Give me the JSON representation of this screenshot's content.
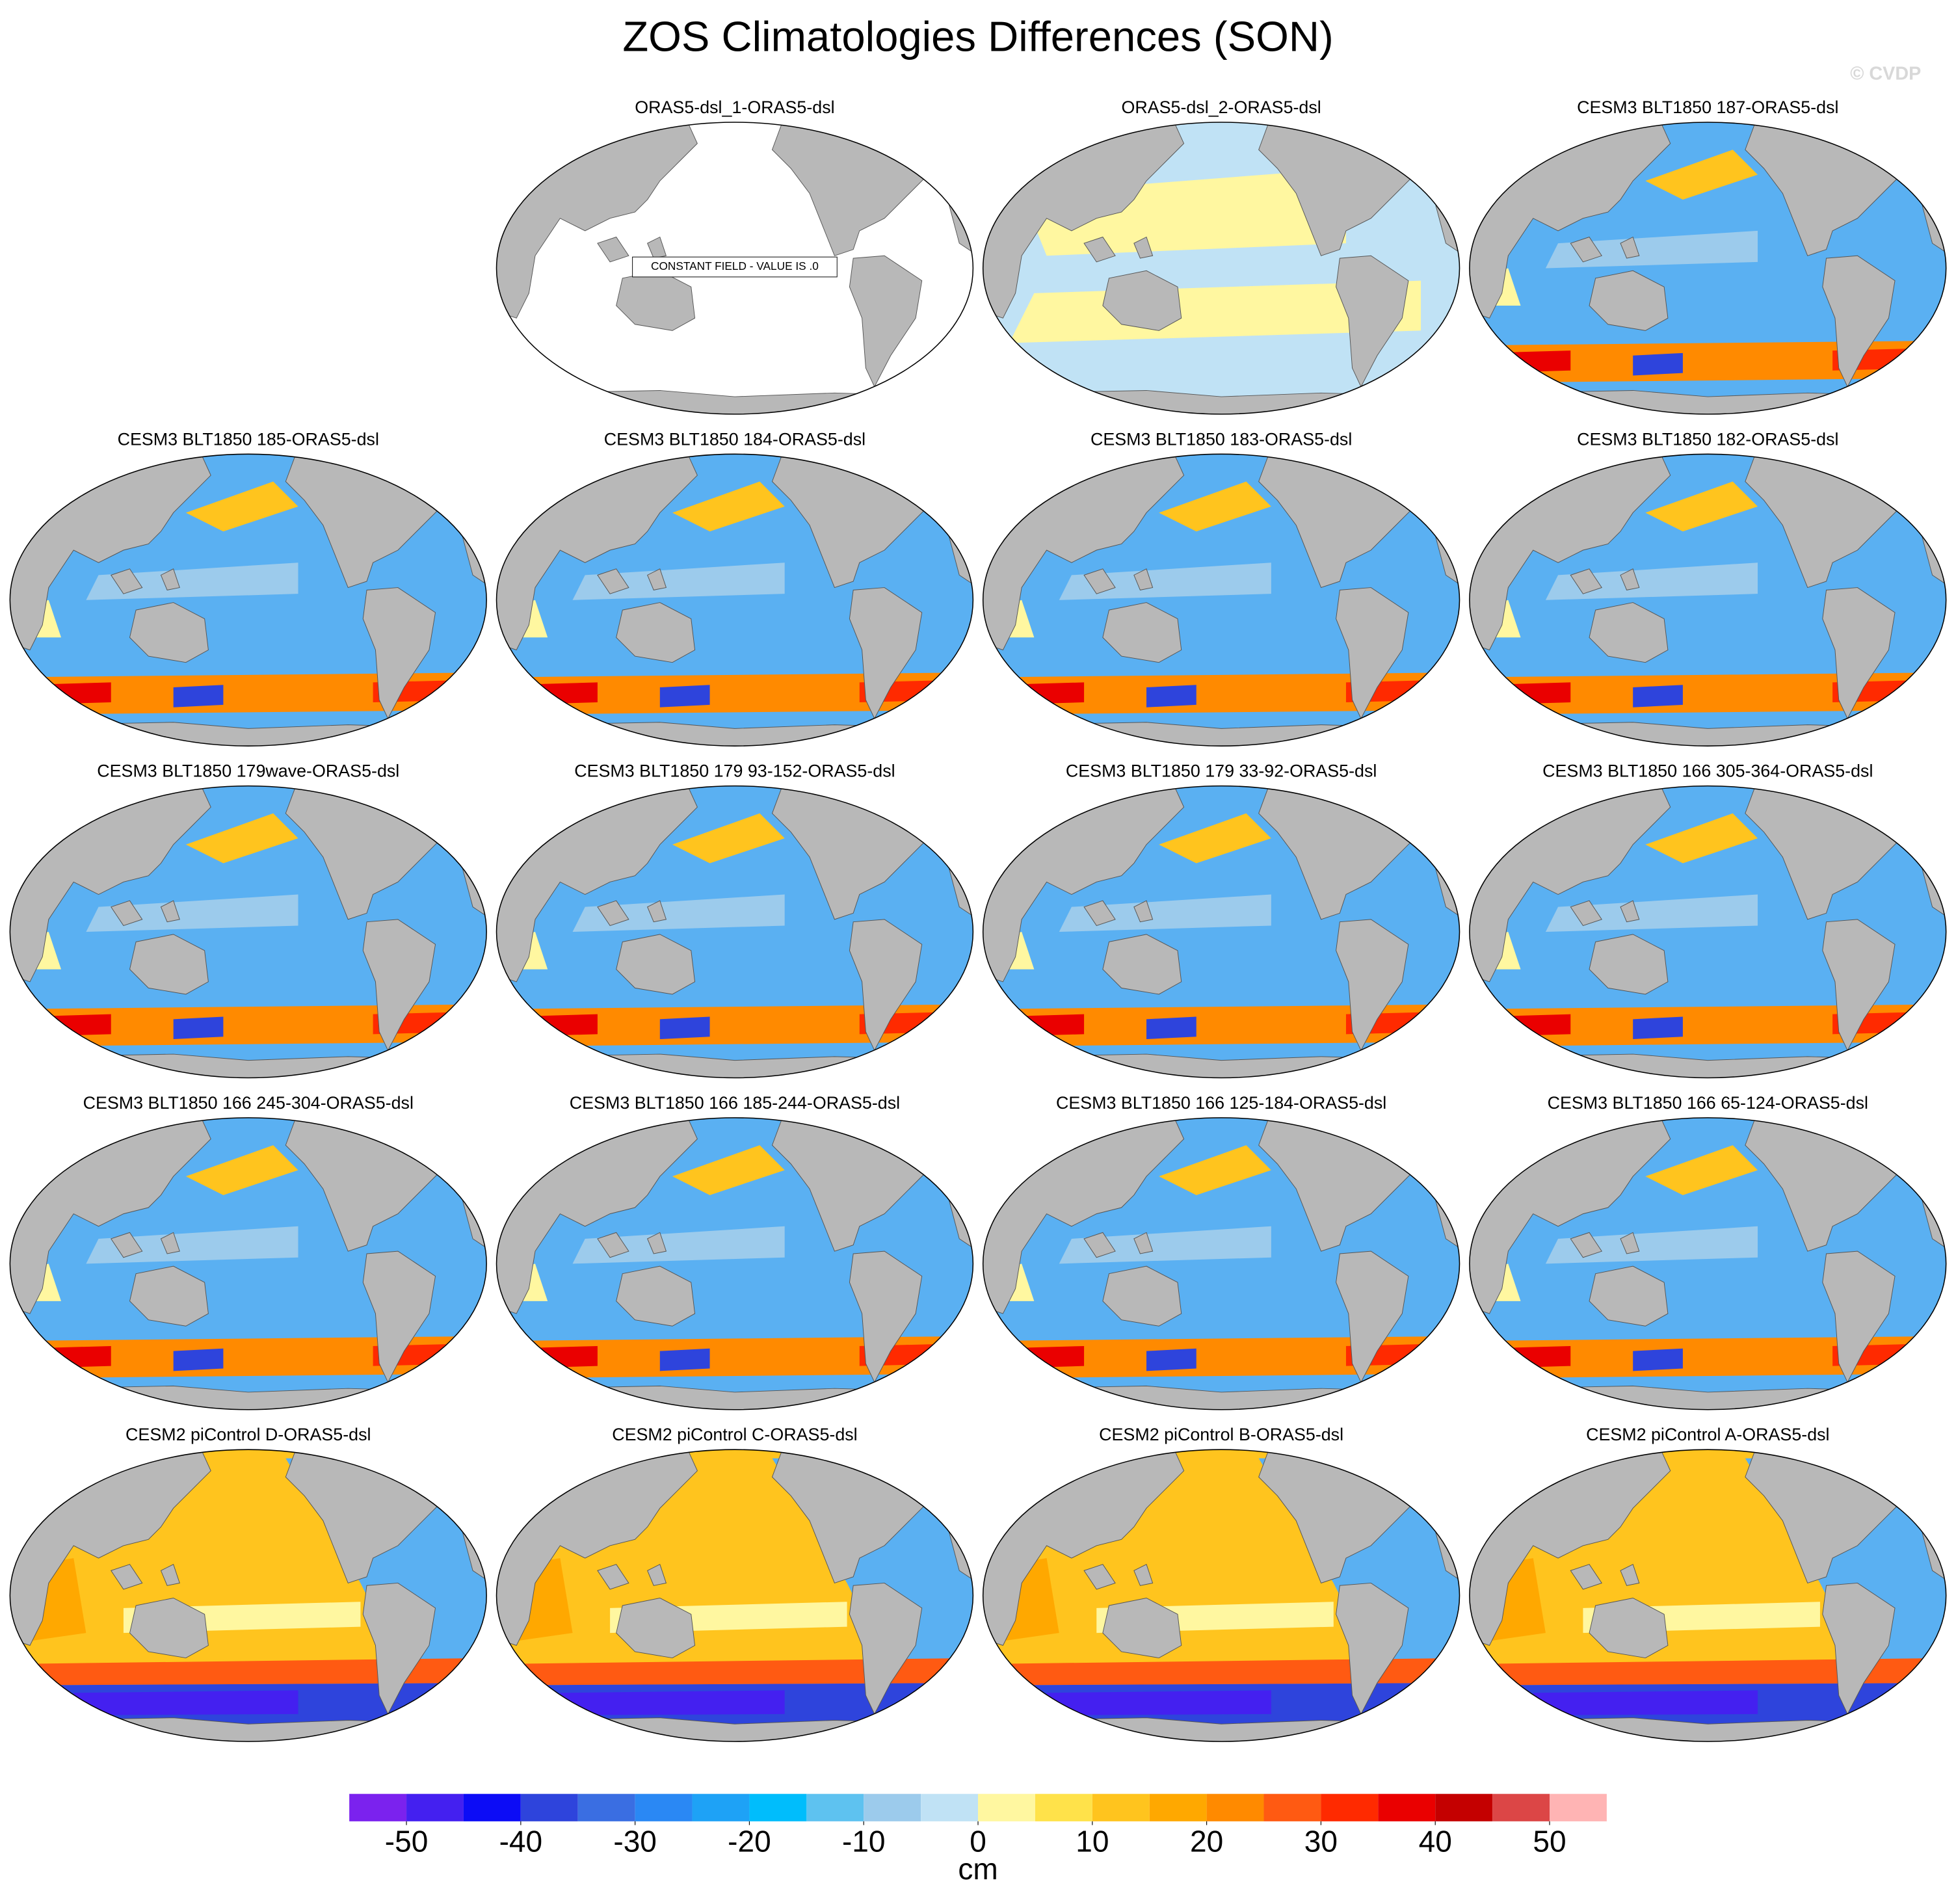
{
  "title": "ZOS Climatologies Differences (SON)",
  "watermark": "© CVDP",
  "note": "CONSTANT FIELD - VALUE IS .0",
  "panels": [
    {
      "title": "ORAS5-dsl_1-ORAS5-dsl"
    },
    {
      "title": "ORAS5-dsl_2-ORAS5-dsl"
    },
    {
      "title": "CESM3 BLT1850 187-ORAS5-dsl"
    },
    {
      "title": "CESM3 BLT1850 185-ORAS5-dsl"
    },
    {
      "title": "CESM3 BLT1850 184-ORAS5-dsl"
    },
    {
      "title": "CESM3 BLT1850 183-ORAS5-dsl"
    },
    {
      "title": "CESM3 BLT1850 182-ORAS5-dsl"
    },
    {
      "title": "CESM3 BLT1850 179wave-ORAS5-dsl"
    },
    {
      "title": "CESM3 BLT1850 179 93-152-ORAS5-dsl"
    },
    {
      "title": "CESM3 BLT1850 179 33-92-ORAS5-dsl"
    },
    {
      "title": "CESM3 BLT1850 166 305-364-ORAS5-dsl"
    },
    {
      "title": "CESM3 BLT1850 166 245-304-ORAS5-dsl"
    },
    {
      "title": "CESM3 BLT1850 166 185-244-ORAS5-dsl"
    },
    {
      "title": "CESM3 BLT1850 166 125-184-ORAS5-dsl"
    },
    {
      "title": "CESM3 BLT1850 166 65-124-ORAS5-dsl"
    },
    {
      "title": "CESM2 piControl D-ORAS5-dsl"
    },
    {
      "title": "CESM2 piControl C-ORAS5-dsl"
    },
    {
      "title": "CESM2 piControl B-ORAS5-dsl"
    },
    {
      "title": "CESM2 piControl A-ORAS5-dsl"
    }
  ],
  "colorbar": {
    "levels": [
      -50,
      -45,
      -40,
      -35,
      -30,
      -25,
      -20,
      -15,
      -10,
      -5,
      0,
      5,
      10,
      15,
      20,
      25,
      30,
      35,
      40,
      45,
      50
    ],
    "colors": [
      "#7b22ee",
      "#4420f0",
      "#0c0cf6",
      "#2e44dc",
      "#3a6ee2",
      "#2a88f4",
      "#1ea2f6",
      "#00bdfc",
      "#5ec2f0",
      "#9ccbec",
      "#c0e2f5",
      "#fff7a0",
      "#ffe24a",
      "#ffc41e",
      "#ffa800",
      "#ff8a00",
      "#ff5a12",
      "#ff2a00",
      "#ea0000",
      "#c40000",
      "#dc4646",
      "#ffb4b4"
    ],
    "ticks": [
      -50,
      -40,
      -30,
      -20,
      -10,
      0,
      10,
      20,
      30,
      40,
      50
    ],
    "unit": "cm"
  }
}
